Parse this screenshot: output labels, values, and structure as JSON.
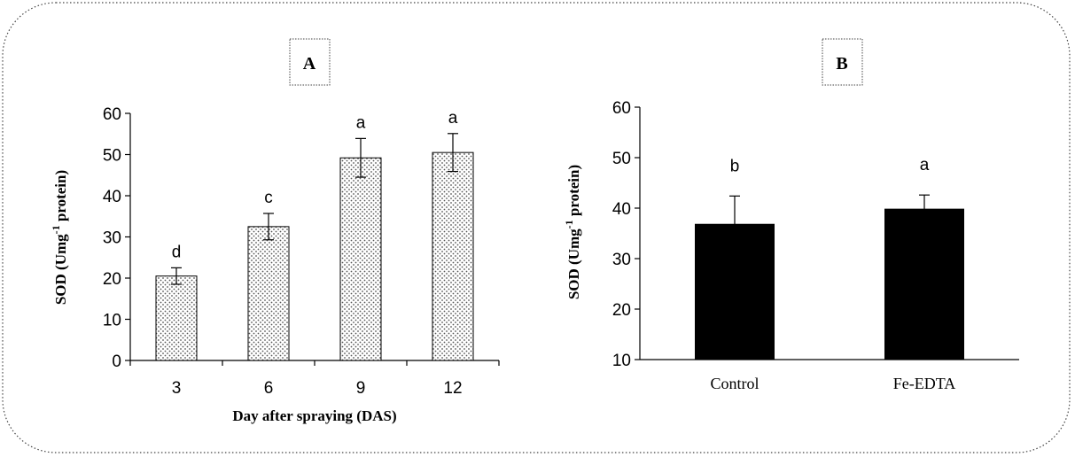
{
  "chart_data": [
    {
      "panel": "A",
      "type": "bar",
      "title": "A",
      "categories": [
        "3",
        "6",
        "9",
        "12"
      ],
      "values": [
        20.5,
        32.5,
        49.2,
        50.5
      ],
      "errors": [
        2.0,
        3.2,
        4.7,
        4.6
      ],
      "significance": [
        "d",
        "c",
        "a",
        "a"
      ],
      "xlabel": "Day after spraying (DAS)",
      "ylabel": "SOD (Umg-1 protein)",
      "ylim": [
        0,
        60
      ],
      "yticks": [
        "0",
        "10",
        "20",
        "30",
        "40",
        "50",
        "60"
      ],
      "bar_fill": "dotted",
      "grid": false
    },
    {
      "panel": "B",
      "type": "bar",
      "title": "B",
      "categories": [
        "Control",
        "Fe-EDTA"
      ],
      "values": [
        36.8,
        39.8
      ],
      "errors": [
        5.6,
        2.8
      ],
      "significance": [
        "b",
        "a"
      ],
      "xlabel": "",
      "ylabel": "SOD (Umg-1 protein)",
      "ylim": [
        10,
        60
      ],
      "yticks": [
        "10",
        "20",
        "30",
        "40",
        "50",
        "60"
      ],
      "bar_color": "#000000",
      "grid": false
    }
  ],
  "ylabel_parts": {
    "pre": "SOD (Umg",
    "sup": "-1",
    "post": " protein)"
  }
}
